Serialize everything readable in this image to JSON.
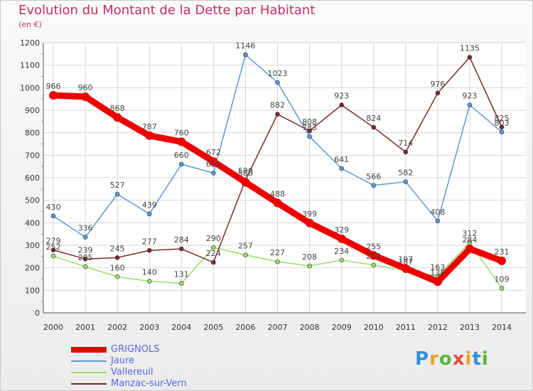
{
  "chart_data": {
    "type": "line",
    "title": "Evolution du Montant de la Dette par Habitant",
    "subtitle": "(en €)",
    "xlabel": "",
    "ylabel": "",
    "x": [
      "2000",
      "2001",
      "2002",
      "2003",
      "2004",
      "2005",
      "2006",
      "2007",
      "2008",
      "2009",
      "2010",
      "2011",
      "2012",
      "2013",
      "2014"
    ],
    "ylim": [
      0,
      1200
    ],
    "yticks": [
      0,
      100,
      200,
      300,
      400,
      500,
      600,
      700,
      800,
      900,
      1000,
      1100,
      1200
    ],
    "grid": true,
    "legend_position": "bottom-left",
    "series": [
      {
        "name": "GRIGNOLS",
        "color": "#ee0000",
        "values": [
          966,
          960,
          868,
          787,
          760,
          672,
          580,
          488,
          399,
          329,
          255,
          197,
          138,
          284,
          231
        ]
      },
      {
        "name": "Jaure",
        "color": "#5b9bd5",
        "values": [
          430,
          336,
          527,
          439,
          660,
          621,
          1146,
          1023,
          783,
          641,
          566,
          582,
          408,
          923,
          803
        ]
      },
      {
        "name": "Vallereuil",
        "color": "#9bdc6a",
        "values": [
          252,
          205,
          160,
          140,
          131,
          290,
          257,
          227,
          208,
          234,
          212,
          187,
          163,
          312,
          109
        ]
      },
      {
        "name": "Manzac-sur-Vern",
        "color": "#7a2a2a",
        "values": [
          279,
          239,
          245,
          277,
          284,
          224,
          590,
          882,
          808,
          923,
          824,
          714,
          976,
          1135,
          825
        ]
      }
    ]
  },
  "brand": {
    "letters": [
      "P",
      "r",
      "o",
      "x",
      "i",
      "t",
      "i"
    ],
    "colors": [
      "#2f8fe0",
      "#f0a020",
      "#58b83a",
      "#e84c3d",
      "#f0a020",
      "#2f8fe0",
      "#58b83a"
    ]
  }
}
